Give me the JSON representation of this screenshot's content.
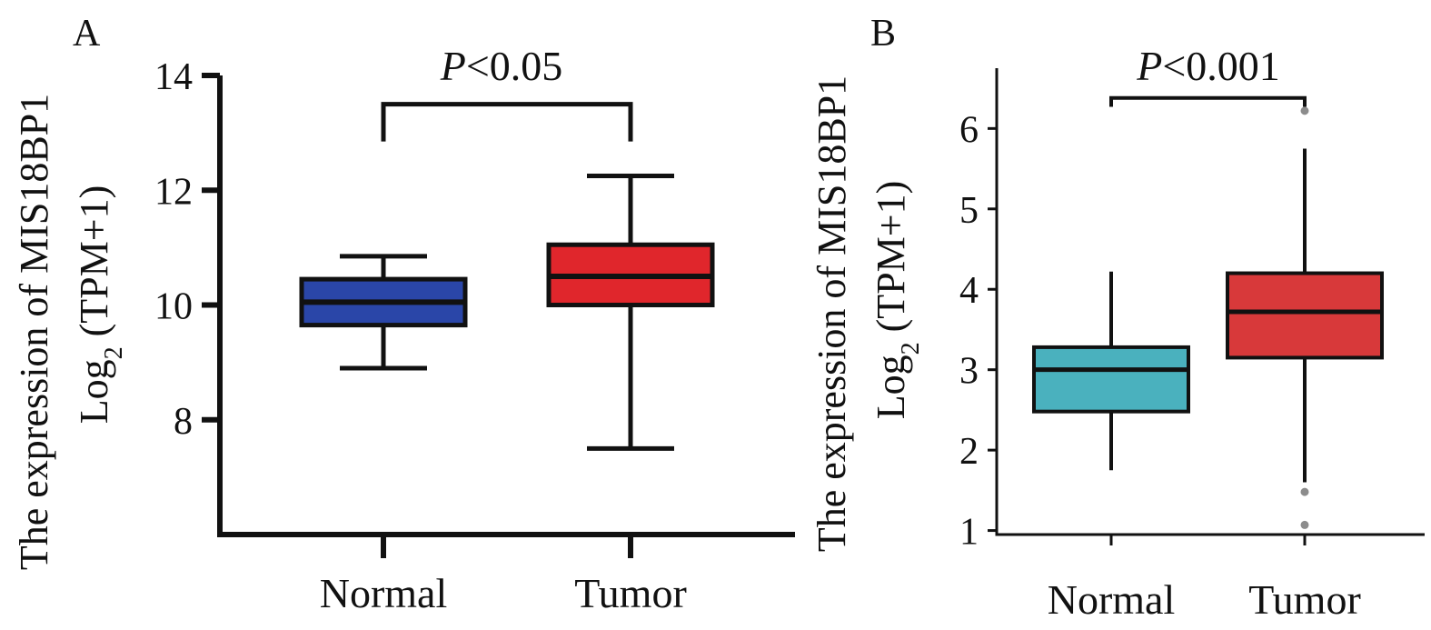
{
  "chart_data": [
    {
      "panel": "A",
      "type": "box",
      "ylabel_line1": "The expression of MIS18BP1",
      "ylabel_line2_prefix": "Log",
      "ylabel_line2_sub": "2",
      "ylabel_line2_suffix": " (TPM+1)",
      "yticks": [
        8,
        10,
        12,
        14
      ],
      "ylim": [
        6,
        14
      ],
      "categories": [
        "Normal",
        "Tumor"
      ],
      "boxes": [
        {
          "name": "Normal",
          "whisker_low": 8.9,
          "q1": 9.65,
          "median": 10.05,
          "q3": 10.45,
          "whisker_high": 10.85,
          "color": "#2a46a8",
          "outliers": []
        },
        {
          "name": "Tumor",
          "whisker_low": 7.5,
          "q1": 10.0,
          "median": 10.5,
          "q3": 11.05,
          "whisker_high": 12.25,
          "color": "#e0262c",
          "outliers": []
        }
      ],
      "significance": {
        "italic": "P",
        "rest": "<0.05",
        "bracket_y": 13.5,
        "leg_bottom": 12.85
      }
    },
    {
      "panel": "B",
      "type": "box",
      "ylabel_line1": "The expression of MIS18BP1",
      "ylabel_line2_prefix": "Log",
      "ylabel_line2_sub": "2",
      "ylabel_line2_suffix": " (TPM+1)",
      "yticks": [
        1,
        2,
        3,
        4,
        5,
        6
      ],
      "ylim": [
        0.95,
        6.75
      ],
      "categories": [
        "Normal",
        "Tumor"
      ],
      "boxes": [
        {
          "name": "Normal",
          "whisker_low": 1.75,
          "q1": 2.48,
          "median": 3.0,
          "q3": 3.28,
          "whisker_high": 4.22,
          "color": "#4ab1be",
          "outliers": []
        },
        {
          "name": "Tumor",
          "whisker_low": 1.6,
          "q1": 3.15,
          "median": 3.72,
          "q3": 4.2,
          "whisker_high": 5.75,
          "color": "#d8393a",
          "outliers": [
            6.22,
            1.48,
            1.07
          ]
        }
      ],
      "significance": {
        "italic": "P",
        "rest": "<0.001",
        "bracket_y": 6.38,
        "leg_bottom": 6.27
      }
    }
  ]
}
